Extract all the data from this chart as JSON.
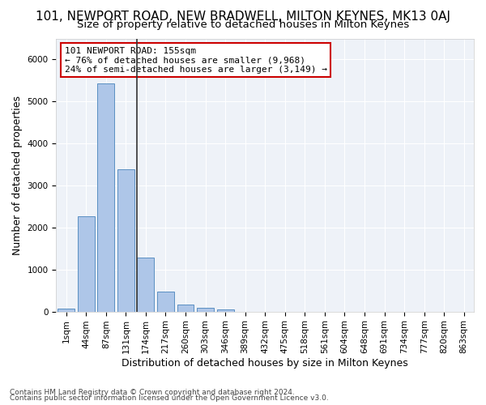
{
  "title": "101, NEWPORT ROAD, NEW BRADWELL, MILTON KEYNES, MK13 0AJ",
  "subtitle": "Size of property relative to detached houses in Milton Keynes",
  "xlabel": "Distribution of detached houses by size in Milton Keynes",
  "ylabel": "Number of detached properties",
  "footer_line1": "Contains HM Land Registry data © Crown copyright and database right 2024.",
  "footer_line2": "Contains public sector information licensed under the Open Government Licence v3.0.",
  "annotation_line1": "101 NEWPORT ROAD: 155sqm",
  "annotation_line2": "← 76% of detached houses are smaller (9,968)",
  "annotation_line3": "24% of semi-detached houses are larger (3,149) →",
  "bar_values": [
    75,
    2270,
    5430,
    3390,
    1290,
    475,
    160,
    80,
    55,
    0,
    0,
    0,
    0,
    0,
    0,
    0,
    0,
    0,
    0,
    0,
    0
  ],
  "bar_labels": [
    "1sqm",
    "44sqm",
    "87sqm",
    "131sqm",
    "174sqm",
    "217sqm",
    "260sqm",
    "303sqm",
    "346sqm",
    "389sqm",
    "432sqm",
    "475sqm",
    "518sqm",
    "561sqm",
    "604sqm",
    "648sqm",
    "691sqm",
    "734sqm",
    "777sqm",
    "820sqm",
    "863sqm"
  ],
  "bar_color": "#aec6e8",
  "bar_edge_color": "#5a8fc2",
  "vline_color": "#333333",
  "bg_color": "#eef2f8",
  "grid_color": "#ffffff",
  "ylim": [
    0,
    6500
  ],
  "title_fontsize": 11,
  "subtitle_fontsize": 9.5,
  "axis_label_fontsize": 9,
  "tick_fontsize": 7.5,
  "annotation_box_color": "#cc0000",
  "annotation_fontsize": 8
}
